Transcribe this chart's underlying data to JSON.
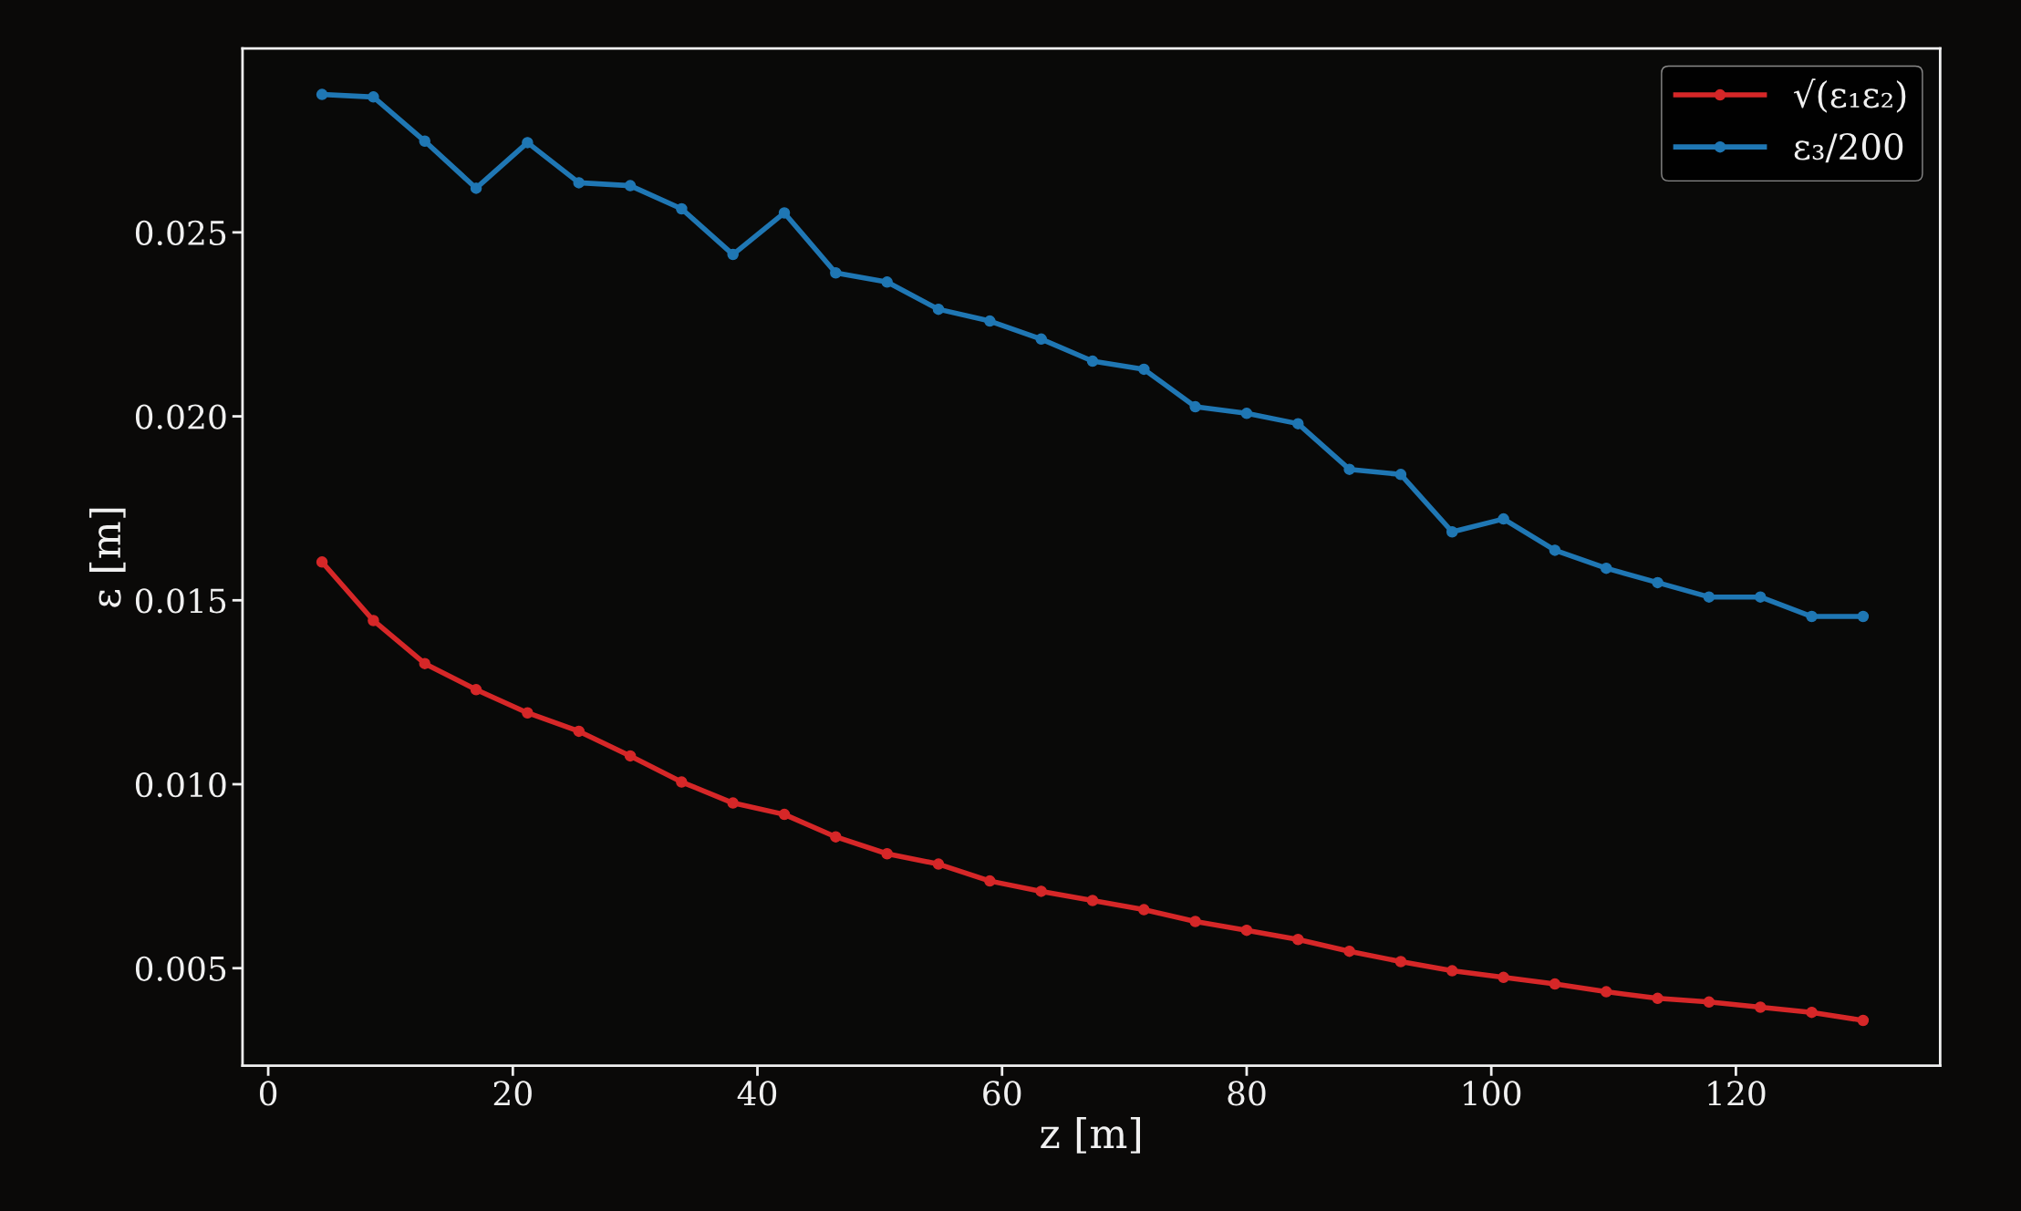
{
  "chart_data": {
    "type": "line",
    "xlabel": "z [m]",
    "ylabel": "ε [m]",
    "x": [
      4.4,
      8.6,
      12.8,
      17.0,
      21.2,
      25.4,
      29.6,
      33.8,
      38.0,
      42.2,
      46.4,
      50.6,
      54.8,
      59.0,
      63.2,
      67.4,
      71.6,
      75.8,
      80.0,
      84.2,
      88.4,
      92.6,
      96.8,
      101.0,
      105.2,
      109.4,
      113.6,
      117.8,
      122.0,
      126.2,
      130.4
    ],
    "series": [
      {
        "name": "√(ε₁ε₂)",
        "color": "#d62728",
        "values": [
          0.01604,
          0.01445,
          0.01328,
          0.01257,
          0.01194,
          0.01144,
          0.01077,
          0.01006,
          0.00949,
          0.00918,
          0.00857,
          0.00811,
          0.00783,
          0.00737,
          0.00709,
          0.00684,
          0.00659,
          0.00627,
          0.00603,
          0.00578,
          0.00546,
          0.00518,
          0.00493,
          0.00475,
          0.00457,
          0.00436,
          0.00418,
          0.00408,
          0.00394,
          0.0038,
          0.00358
        ]
      },
      {
        "name": "ε₃/200",
        "color": "#1f77b4",
        "values": [
          0.02875,
          0.02868,
          0.02748,
          0.0262,
          0.02744,
          0.02635,
          0.02627,
          0.02564,
          0.0244,
          0.02553,
          0.0239,
          0.02365,
          0.02291,
          0.02259,
          0.0221,
          0.0215,
          0.02128,
          0.02026,
          0.02008,
          0.0198,
          0.01856,
          0.01842,
          0.01686,
          0.01721,
          0.01636,
          0.01587,
          0.01548,
          0.01509,
          0.01509,
          0.01456,
          0.01456
        ]
      }
    ],
    "xlim": [
      -2.1,
      136.7
    ],
    "xticks": [
      0,
      20,
      40,
      60,
      80,
      100,
      120
    ],
    "ylim": [
      0.00235,
      0.03
    ],
    "yticks": [
      {
        "value": 0.005,
        "label": "0.005"
      },
      {
        "value": 0.01,
        "label": "0.010"
      },
      {
        "value": 0.015,
        "label": "0.015"
      },
      {
        "value": 0.02,
        "label": "0.020"
      },
      {
        "value": 0.025,
        "label": "0.025"
      }
    ],
    "legend": "top right",
    "marker": "circle",
    "line_style": "solid",
    "grid": false
  }
}
